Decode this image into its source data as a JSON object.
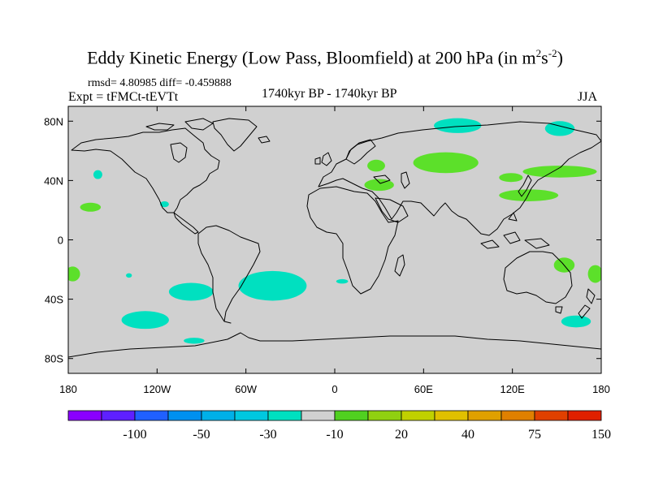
{
  "title": {
    "main": "Eddy Kinetic Energy (Low Pass, Bloomfield) at 200 hPa (in m",
    "sup1": "2",
    "mid": "s",
    "sup2": "-2",
    "end": ")"
  },
  "subtitle": {
    "stats": "rmsd= 4.80985 diff= -0.459888",
    "experiment": "Expt = tFMCt-tEVTt",
    "period": "1740kyr BP - 1740kyr BP",
    "season": "JJA"
  },
  "map": {
    "lon_range": [
      -180,
      180
    ],
    "lat_range": [
      -90,
      90
    ],
    "land_color": "#d0d0d0",
    "coast_color": "#000000",
    "x_ticks": [
      {
        "lon": -180,
        "label": "180"
      },
      {
        "lon": -120,
        "label": "120W"
      },
      {
        "lon": -60,
        "label": "60W"
      },
      {
        "lon": 0,
        "label": "0"
      },
      {
        "lon": 60,
        "label": "60E"
      },
      {
        "lon": 120,
        "label": "120E"
      },
      {
        "lon": 180,
        "label": "180"
      }
    ],
    "y_ticks": [
      {
        "lat": 80,
        "label": "80N"
      },
      {
        "lat": 40,
        "label": "40N"
      },
      {
        "lat": 0,
        "label": "0"
      },
      {
        "lat": -40,
        "label": "40S"
      },
      {
        "lat": -80,
        "label": "80S"
      }
    ],
    "anomaly_regions": [
      {
        "sign": "neg",
        "color": "#00e0c0",
        "lon": 83,
        "lat": 77,
        "rx": 16,
        "ry": 5
      },
      {
        "sign": "neg",
        "color": "#00e0c0",
        "lon": 152,
        "lat": 75,
        "rx": 10,
        "ry": 5
      },
      {
        "sign": "neg",
        "color": "#00e0c0",
        "lon": -160,
        "lat": 44,
        "rx": 3,
        "ry": 3
      },
      {
        "sign": "neg",
        "color": "#00e0c0",
        "lon": -115,
        "lat": 24,
        "rx": 3,
        "ry": 2
      },
      {
        "sign": "neg",
        "color": "#00e0c0",
        "lon": -139,
        "lat": -24,
        "rx": 2,
        "ry": 1.5
      },
      {
        "sign": "neg",
        "color": "#00e0c0",
        "lon": -97,
        "lat": -35,
        "rx": 15,
        "ry": 6
      },
      {
        "sign": "neg",
        "color": "#00e0c0",
        "lon": -42,
        "lat": -31,
        "rx": 23,
        "ry": 10
      },
      {
        "sign": "neg",
        "color": "#00e0c0",
        "lon": -128,
        "lat": -54,
        "rx": 16,
        "ry": 6
      },
      {
        "sign": "neg",
        "color": "#00e0c0",
        "lon": -95,
        "lat": -68,
        "rx": 7,
        "ry": 2
      },
      {
        "sign": "neg",
        "color": "#00e0c0",
        "lon": 5,
        "lat": -28,
        "rx": 4,
        "ry": 1.5
      },
      {
        "sign": "neg",
        "color": "#00e0c0",
        "lon": 163,
        "lat": -55,
        "rx": 10,
        "ry": 4
      },
      {
        "sign": "pos",
        "color": "#5ce02a",
        "lon": 28,
        "lat": 50,
        "rx": 6,
        "ry": 4
      },
      {
        "sign": "pos",
        "color": "#5ce02a",
        "lon": 75,
        "lat": 52,
        "rx": 22,
        "ry": 7
      },
      {
        "sign": "pos",
        "color": "#5ce02a",
        "lon": 30,
        "lat": 37,
        "rx": 10,
        "ry": 4
      },
      {
        "sign": "pos",
        "color": "#5ce02a",
        "lon": 119,
        "lat": 42,
        "rx": 8,
        "ry": 3
      },
      {
        "sign": "pos",
        "color": "#5ce02a",
        "lon": 152,
        "lat": 46,
        "rx": 25,
        "ry": 4
      },
      {
        "sign": "pos",
        "color": "#5ce02a",
        "lon": 131,
        "lat": 30,
        "rx": 20,
        "ry": 4
      },
      {
        "sign": "pos",
        "color": "#5ce02a",
        "lon": -165,
        "lat": 22,
        "rx": 7,
        "ry": 3
      },
      {
        "sign": "pos",
        "color": "#5ce02a",
        "lon": -177,
        "lat": -23,
        "rx": 5,
        "ry": 5
      },
      {
        "sign": "pos",
        "color": "#5ce02a",
        "lon": 176,
        "lat": -23,
        "rx": 5,
        "ry": 6
      },
      {
        "sign": "pos",
        "color": "#5ce02a",
        "lon": 155,
        "lat": -17,
        "rx": 7,
        "ry": 5
      }
    ]
  },
  "colorbar": {
    "colors": [
      "#8a00ff",
      "#5e20ff",
      "#2060ff",
      "#0090f0",
      "#00b0e8",
      "#00c8e0",
      "#00e0c0",
      "#d0d0d0",
      "#50d020",
      "#90d010",
      "#c0d000",
      "#e0c000",
      "#e0a000",
      "#e08000",
      "#e04000",
      "#e02000"
    ],
    "labels": [
      {
        "boundary": 2,
        "text": "-100"
      },
      {
        "boundary": 4,
        "text": "-50"
      },
      {
        "boundary": 6,
        "text": "-30"
      },
      {
        "boundary": 8,
        "text": "-10"
      },
      {
        "boundary": 10,
        "text": "20"
      },
      {
        "boundary": 12,
        "text": "40"
      },
      {
        "boundary": 14,
        "text": "75"
      },
      {
        "boundary": 16,
        "text": "150"
      }
    ]
  }
}
